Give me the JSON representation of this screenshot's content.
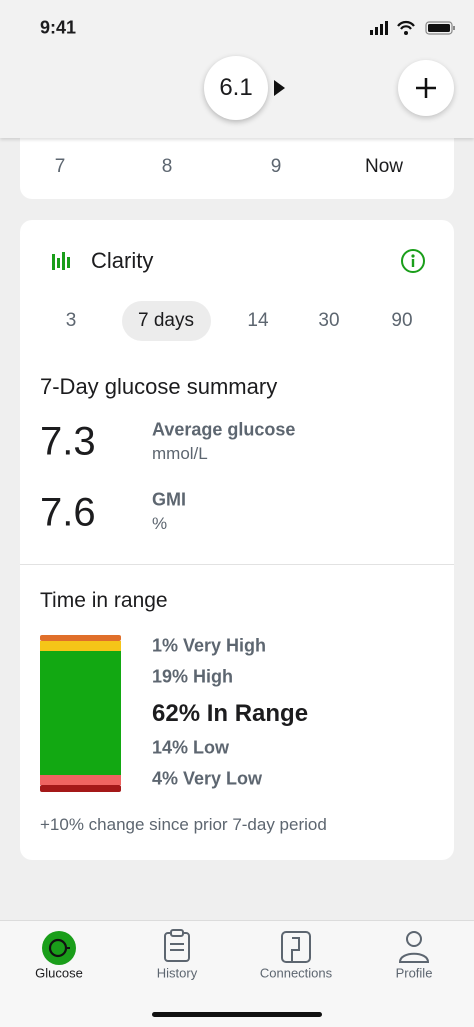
{
  "status_bar": {
    "time": "9:41"
  },
  "header": {
    "current_value": "6.1"
  },
  "timeline": {
    "labels": [
      "7",
      "8",
      "9",
      "Now"
    ]
  },
  "clarity": {
    "title": "Clarity",
    "ranges": [
      "3",
      "7 days",
      "14",
      "30",
      "90"
    ]
  },
  "summary": {
    "title": "7-Day glucose summary",
    "metrics": [
      {
        "value": "7.3",
        "label": "Average glucose",
        "unit": "mmol/L"
      },
      {
        "value": "7.6",
        "label": "GMI",
        "unit": "%"
      }
    ]
  },
  "time_in_range": {
    "title": "Time in range",
    "items": [
      "1% Very High",
      "19% High",
      "62% In Range",
      "14% Low",
      "4% Very Low"
    ],
    "change_note": "+10% change since prior 7-day period"
  },
  "tabs": [
    "Glucose",
    "History",
    "Connections",
    "Profile"
  ]
}
